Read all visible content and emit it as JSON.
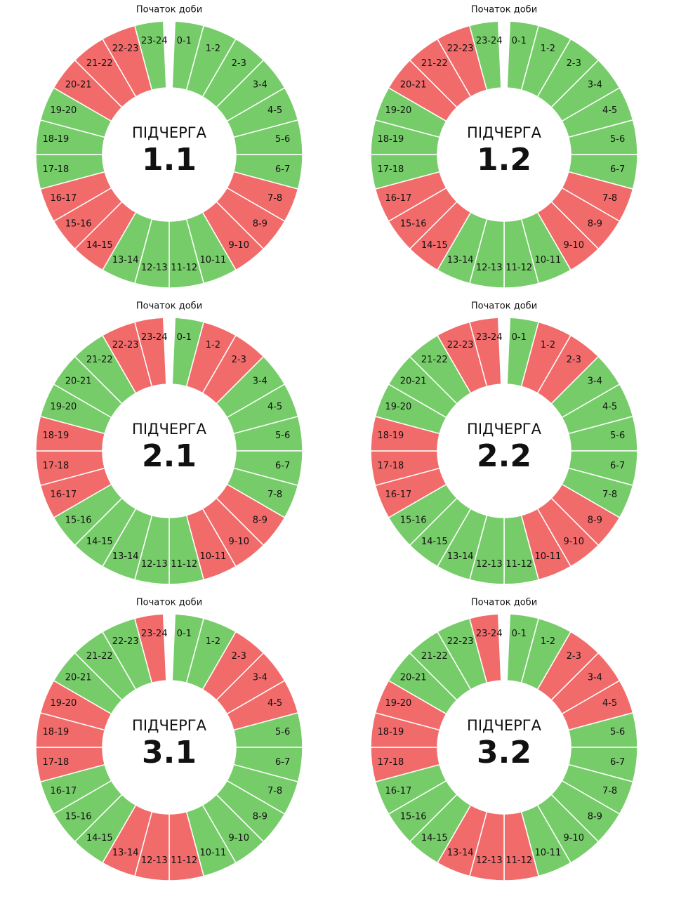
{
  "start_label": "Початок доби",
  "queue_label": "ПІДЧЕРГА",
  "hours": [
    "0-1",
    "1-2",
    "2-3",
    "3-4",
    "4-5",
    "5-6",
    "6-7",
    "7-8",
    "8-9",
    "9-10",
    "10-11",
    "11-12",
    "12-13",
    "13-14",
    "14-15",
    "15-16",
    "16-17",
    "17-18",
    "18-19",
    "19-20",
    "20-21",
    "21-22",
    "22-23",
    "23-24"
  ],
  "colors": {
    "on": "#77cc6a",
    "off": "#f26b6b"
  },
  "queues": [
    {
      "number": "1.1",
      "status": [
        "on",
        "on",
        "on",
        "on",
        "on",
        "on",
        "on",
        "off",
        "off",
        "off",
        "on",
        "on",
        "on",
        "on",
        "off",
        "off",
        "off",
        "on",
        "on",
        "on",
        "off",
        "off",
        "off",
        "on"
      ]
    },
    {
      "number": "1.2",
      "status": [
        "on",
        "on",
        "on",
        "on",
        "on",
        "on",
        "on",
        "off",
        "off",
        "off",
        "on",
        "on",
        "on",
        "on",
        "off",
        "off",
        "off",
        "on",
        "on",
        "on",
        "off",
        "off",
        "off",
        "on"
      ]
    },
    {
      "number": "2.1",
      "status": [
        "on",
        "off",
        "off",
        "on",
        "on",
        "on",
        "on",
        "on",
        "off",
        "off",
        "off",
        "on",
        "on",
        "on",
        "on",
        "on",
        "off",
        "off",
        "off",
        "on",
        "on",
        "on",
        "off",
        "off"
      ]
    },
    {
      "number": "2.2",
      "status": [
        "on",
        "off",
        "off",
        "on",
        "on",
        "on",
        "on",
        "on",
        "off",
        "off",
        "off",
        "on",
        "on",
        "on",
        "on",
        "on",
        "off",
        "off",
        "off",
        "on",
        "on",
        "on",
        "off",
        "off"
      ]
    },
    {
      "number": "3.1",
      "status": [
        "on",
        "on",
        "off",
        "off",
        "off",
        "on",
        "on",
        "on",
        "on",
        "on",
        "on",
        "off",
        "off",
        "off",
        "on",
        "on",
        "on",
        "off",
        "off",
        "off",
        "on",
        "on",
        "on",
        "off"
      ]
    },
    {
      "number": "3.2",
      "status": [
        "on",
        "on",
        "off",
        "off",
        "off",
        "on",
        "on",
        "on",
        "on",
        "on",
        "on",
        "off",
        "off",
        "off",
        "on",
        "on",
        "on",
        "off",
        "off",
        "off",
        "on",
        "on",
        "on",
        "off"
      ]
    }
  ]
}
